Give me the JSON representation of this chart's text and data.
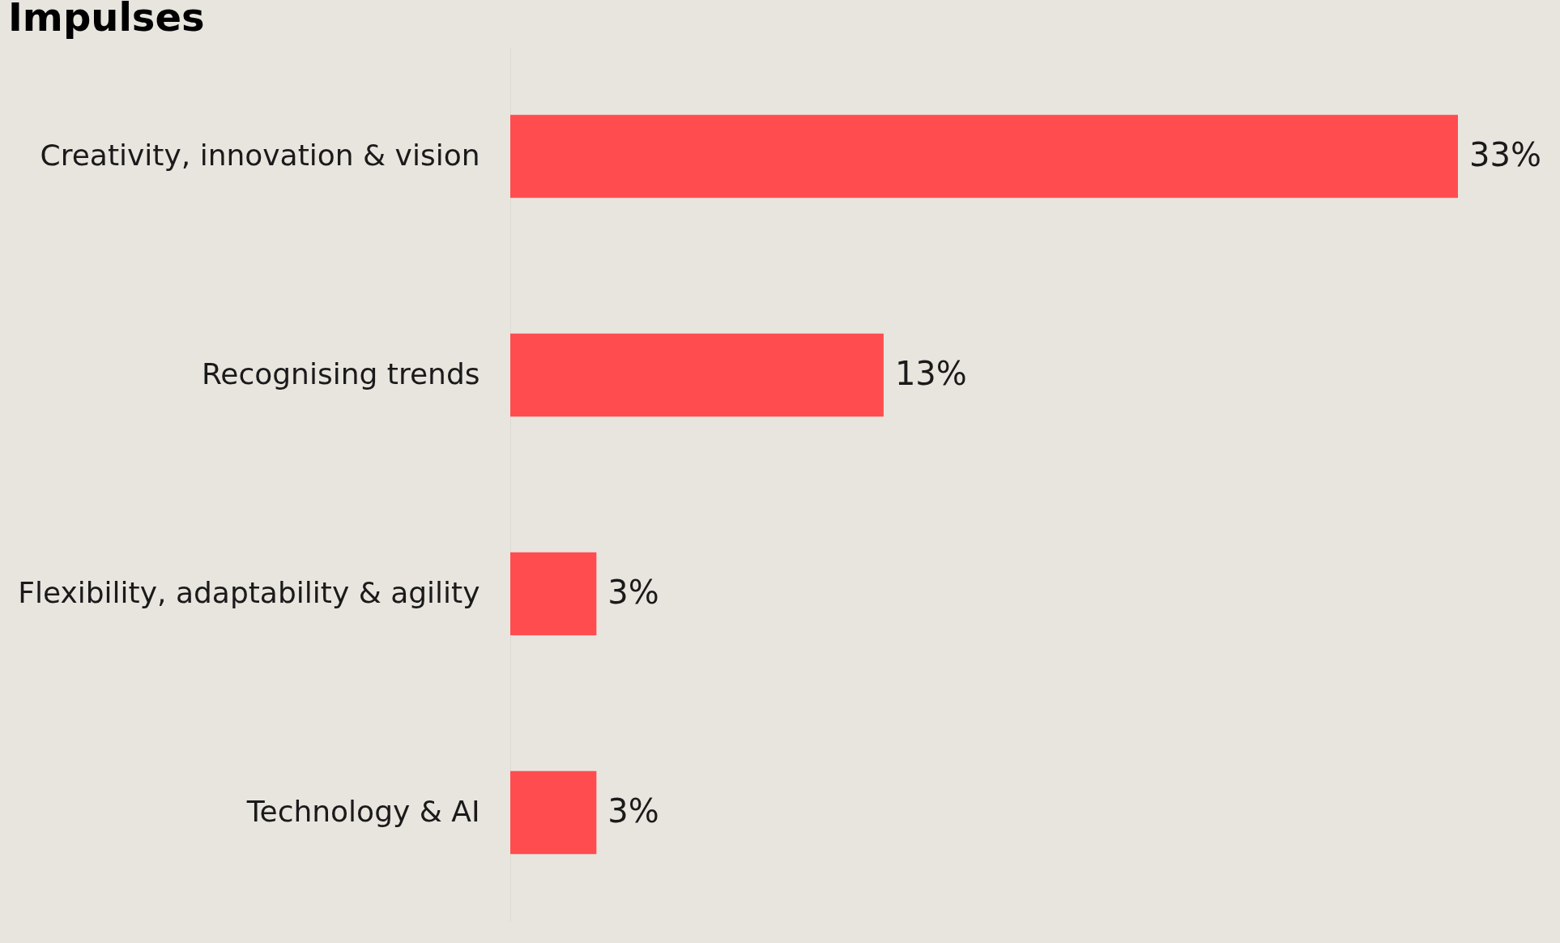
{
  "chart_data": {
    "type": "bar",
    "orientation": "horizontal",
    "title": "Impulses",
    "categories": [
      "Creativity, innovation & vision",
      "Recognising trends",
      "Flexibility, adaptability & agility",
      "Technology & AI"
    ],
    "values": [
      33,
      13,
      3,
      3
    ],
    "value_labels": [
      "33%",
      "13%",
      "3%",
      "3%"
    ],
    "color": "#ff4d4f",
    "grid": false
  }
}
